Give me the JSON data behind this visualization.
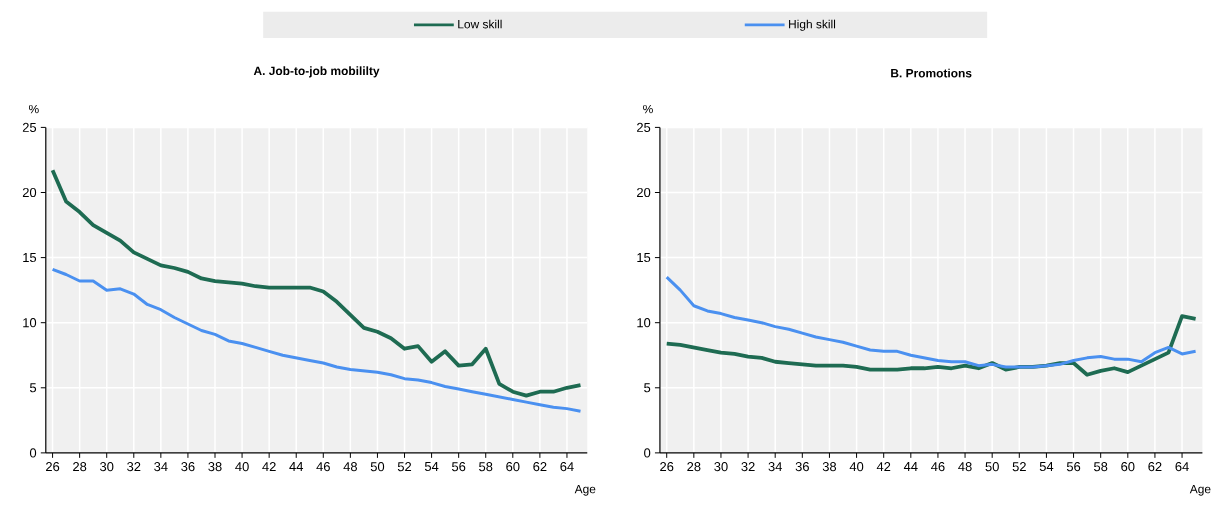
{
  "chart_data": [
    {
      "type": "line",
      "title": "A. Job-to-job mobililty",
      "xlabel": "Age",
      "ylabel": "%",
      "x": [
        26,
        27,
        28,
        29,
        30,
        31,
        32,
        33,
        34,
        35,
        36,
        37,
        38,
        39,
        40,
        41,
        42,
        43,
        44,
        45,
        46,
        47,
        48,
        49,
        50,
        51,
        52,
        53,
        54,
        55,
        56,
        57,
        58,
        59,
        60,
        61,
        62,
        63,
        64,
        65
      ],
      "series": [
        {
          "name": "Low skill",
          "color": "#1e6b52",
          "values": [
            21.7,
            19.3,
            18.5,
            17.5,
            16.9,
            16.3,
            15.4,
            14.9,
            14.4,
            14.2,
            13.9,
            13.4,
            13.2,
            13.1,
            13.0,
            12.8,
            12.7,
            12.7,
            12.7,
            12.7,
            12.4,
            11.6,
            10.6,
            9.6,
            9.3,
            8.8,
            8.0,
            8.2,
            7.0,
            7.8,
            6.7,
            6.8,
            8.0,
            5.3,
            4.7,
            4.4,
            4.7,
            4.7,
            5.0,
            5.2
          ]
        },
        {
          "name": "High skill",
          "color": "#4a90f0",
          "values": [
            14.1,
            13.7,
            13.2,
            13.2,
            12.5,
            12.6,
            12.2,
            11.4,
            11.0,
            10.4,
            9.9,
            9.4,
            9.1,
            8.6,
            8.4,
            8.1,
            7.8,
            7.5,
            7.3,
            7.1,
            6.9,
            6.6,
            6.4,
            6.3,
            6.2,
            6.0,
            5.7,
            5.6,
            5.4,
            5.1,
            4.9,
            4.7,
            4.5,
            4.3,
            4.1,
            3.9,
            3.7,
            3.5,
            3.4,
            3.2
          ]
        }
      ],
      "xlim": [
        25.5,
        65.5
      ],
      "xticks": [
        26,
        28,
        30,
        32,
        34,
        36,
        38,
        40,
        42,
        44,
        46,
        48,
        50,
        52,
        54,
        56,
        58,
        60,
        62,
        64
      ],
      "ylim": [
        0,
        25
      ],
      "yticks": [
        0,
        5,
        10,
        15,
        20,
        25
      ],
      "grid": true,
      "legend": "top",
      "marker": "none",
      "line_style": "solid"
    },
    {
      "type": "line",
      "title": "B. Promotions",
      "xlabel": "Age",
      "ylabel": "%",
      "x": [
        26,
        27,
        28,
        29,
        30,
        31,
        32,
        33,
        34,
        35,
        36,
        37,
        38,
        39,
        40,
        41,
        42,
        43,
        44,
        45,
        46,
        47,
        48,
        49,
        50,
        51,
        52,
        53,
        54,
        55,
        56,
        57,
        58,
        59,
        60,
        61,
        62,
        63,
        64,
        65
      ],
      "series": [
        {
          "color": "#1e6b52",
          "values": [
            8.4,
            8.3,
            8.1,
            7.9,
            7.7,
            7.6,
            7.4,
            7.3,
            7.0,
            6.9,
            6.8,
            6.7,
            6.7,
            6.7,
            6.6,
            6.4,
            6.4,
            6.4,
            6.5,
            6.5,
            6.6,
            6.5,
            6.7,
            6.5,
            6.9,
            6.4,
            6.6,
            6.6,
            6.7,
            6.9,
            6.9,
            6.0,
            6.3,
            6.5,
            6.2,
            6.7,
            7.2,
            7.7,
            10.5,
            10.3
          ]
        },
        {
          "color": "#4a90f0",
          "values": [
            13.5,
            12.5,
            11.3,
            10.9,
            10.7,
            10.4,
            10.2,
            10.0,
            9.7,
            9.5,
            9.2,
            8.9,
            8.7,
            8.5,
            8.2,
            7.9,
            7.8,
            7.8,
            7.5,
            7.3,
            7.1,
            7.0,
            7.0,
            6.7,
            6.8,
            6.6,
            6.6,
            6.6,
            6.7,
            6.8,
            7.1,
            7.3,
            7.4,
            7.2,
            7.2,
            7.0,
            7.7,
            8.1,
            7.6,
            7.8
          ]
        }
      ],
      "xlim": [
        25.5,
        65.5
      ],
      "xticks": [
        26,
        28,
        30,
        32,
        34,
        36,
        38,
        40,
        42,
        44,
        46,
        48,
        50,
        52,
        54,
        56,
        58,
        60,
        62,
        64
      ],
      "ylim": [
        0,
        25
      ],
      "yticks": [
        0,
        5,
        10,
        15,
        20,
        25
      ],
      "grid": true,
      "legend": false,
      "marker": "none",
      "line_style": "solid"
    }
  ]
}
